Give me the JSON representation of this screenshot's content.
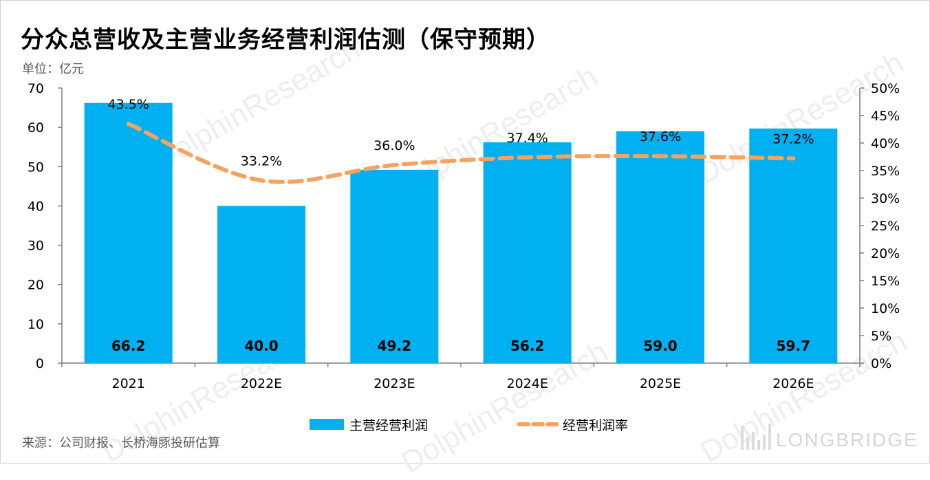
{
  "title": "分众总营收及主营业务经营利润估测（保守预期）",
  "unit": "单位：亿元",
  "source": "来源：公司财报、长桥海豚投研估算",
  "brand": {
    "wordmark": "LONGBRIDGE",
    "watermark_main": "DolphinResearch",
    "watermark_sub": "LONGBRIDGE"
  },
  "colors": {
    "bar": "#00b0f0",
    "line": "#f4a460",
    "axis": "#7f7f7f"
  },
  "chart_data": {
    "type": "bar",
    "categories": [
      "2021",
      "2022E",
      "2023E",
      "2024E",
      "2025E",
      "2026E"
    ],
    "series": [
      {
        "name": "主营经营利润",
        "type": "bar",
        "axis": "left",
        "values": [
          66.2,
          40.0,
          49.2,
          56.2,
          59.0,
          59.7
        ],
        "value_labels": [
          "66.2",
          "40.0",
          "49.2",
          "56.2",
          "59.0",
          "59.7"
        ]
      },
      {
        "name": "经营利润率",
        "type": "line",
        "style": "dashed",
        "axis": "right",
        "values": [
          43.5,
          33.2,
          36.0,
          37.4,
          37.6,
          37.2
        ],
        "value_labels": [
          "43.5%",
          "33.2%",
          "36.0%",
          "37.4%",
          "37.6%",
          "37.2%"
        ]
      }
    ],
    "y_left": {
      "lim": [
        0,
        70
      ],
      "ticks": [
        "0",
        "10",
        "20",
        "30",
        "40",
        "50",
        "60",
        "70"
      ]
    },
    "y_right": {
      "lim": [
        0,
        50
      ],
      "ticks": [
        "0%",
        "5%",
        "10%",
        "15%",
        "20%",
        "25%",
        "30%",
        "35%",
        "40%",
        "45%",
        "50%"
      ]
    },
    "grid": false,
    "legend_position": "bottom"
  }
}
